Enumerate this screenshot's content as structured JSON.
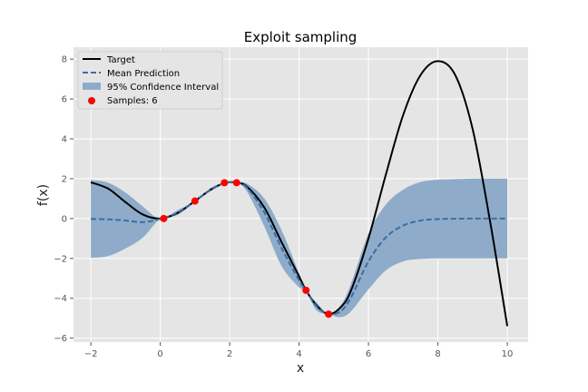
{
  "chart_data": {
    "type": "line",
    "title": "Exploit sampling",
    "xlabel": "x",
    "ylabel": "f(x)",
    "xlim": [
      -2.5,
      10.6
    ],
    "ylim": [
      -6.2,
      8.6
    ],
    "xticks": [
      -2,
      0,
      2,
      4,
      6,
      8,
      10
    ],
    "yticks": [
      -6,
      -4,
      -2,
      0,
      2,
      4,
      6,
      8
    ],
    "grid": true,
    "legend_position": "top-left",
    "colors": {
      "background": "#e5e5e5",
      "grid": "#ffffff",
      "target": "#000000",
      "mean": "#3a6ea5",
      "ci": "#8eacc9",
      "samples": "#ff0000"
    },
    "series": [
      {
        "name": "Target",
        "style": "solid",
        "x": [
          -2,
          -1.5,
          -1,
          -0.5,
          0,
          0.5,
          1,
          1.5,
          1.9,
          2.2,
          2.5,
          3,
          3.5,
          4,
          4.2,
          4.5,
          4.85,
          5.2,
          5.5,
          6,
          6.5,
          7,
          7.5,
          8,
          8.5,
          9,
          9.5,
          10
        ],
        "y": [
          1.82,
          1.5,
          0.82,
          0.2,
          0.0,
          0.28,
          0.88,
          1.5,
          1.8,
          1.8,
          1.6,
          0.55,
          -1.2,
          -2.9,
          -3.6,
          -4.35,
          -4.8,
          -4.45,
          -3.6,
          -1.0,
          2.2,
          5.2,
          7.2,
          7.9,
          7.2,
          4.5,
          -0.1,
          -5.4
        ]
      },
      {
        "name": "Mean Prediction",
        "style": "dashed",
        "x": [
          -2,
          -1.5,
          -1,
          -0.5,
          0,
          0.5,
          1,
          1.5,
          1.9,
          2.2,
          2.5,
          3,
          3.5,
          4,
          4.2,
          4.5,
          4.85,
          5.2,
          5.5,
          6,
          6.5,
          7,
          7.5,
          8,
          8.5,
          9,
          9.5,
          10
        ],
        "y": [
          -0.02,
          -0.04,
          -0.1,
          -0.18,
          -0.02,
          0.3,
          0.88,
          1.5,
          1.8,
          1.8,
          1.55,
          0.3,
          -1.5,
          -3.1,
          -3.6,
          -4.4,
          -4.8,
          -4.65,
          -3.95,
          -2.15,
          -0.95,
          -0.35,
          -0.1,
          -0.03,
          -0.01,
          0.0,
          0.0,
          0.0
        ]
      }
    ],
    "confidence_interval": {
      "name": "95% Confidence Interval",
      "x": [
        -2,
        -1.5,
        -1,
        -0.5,
        0,
        0.5,
        1,
        1.5,
        1.9,
        2.2,
        2.5,
        3,
        3.5,
        4,
        4.2,
        4.5,
        4.85,
        5.2,
        5.5,
        6,
        6.5,
        7,
        7.5,
        8,
        8.5,
        9,
        9.5,
        10
      ],
      "lower": [
        -1.98,
        -1.88,
        -1.5,
        -0.95,
        -0.02,
        0.18,
        0.88,
        1.42,
        1.8,
        1.8,
        1.35,
        -0.4,
        -2.4,
        -3.45,
        -3.6,
        -4.6,
        -4.8,
        -4.95,
        -4.65,
        -3.55,
        -2.6,
        -2.15,
        -2.03,
        -2.0,
        -2.0,
        -2.0,
        -2.0,
        -2.0
      ],
      "upper": [
        1.94,
        1.8,
        1.3,
        0.6,
        -0.02,
        0.42,
        0.88,
        1.58,
        1.8,
        1.8,
        1.75,
        1.0,
        -0.6,
        -2.75,
        -3.6,
        -4.2,
        -4.8,
        -4.35,
        -3.25,
        -0.75,
        0.7,
        1.45,
        1.83,
        1.95,
        1.98,
        2.0,
        2.0,
        2.0
      ]
    },
    "samples": {
      "name": "Samples: 6",
      "x": [
        0.1,
        1.0,
        1.85,
        2.2,
        4.2,
        4.85
      ],
      "y": [
        0.0,
        0.88,
        1.8,
        1.8,
        -3.6,
        -4.8
      ]
    }
  }
}
